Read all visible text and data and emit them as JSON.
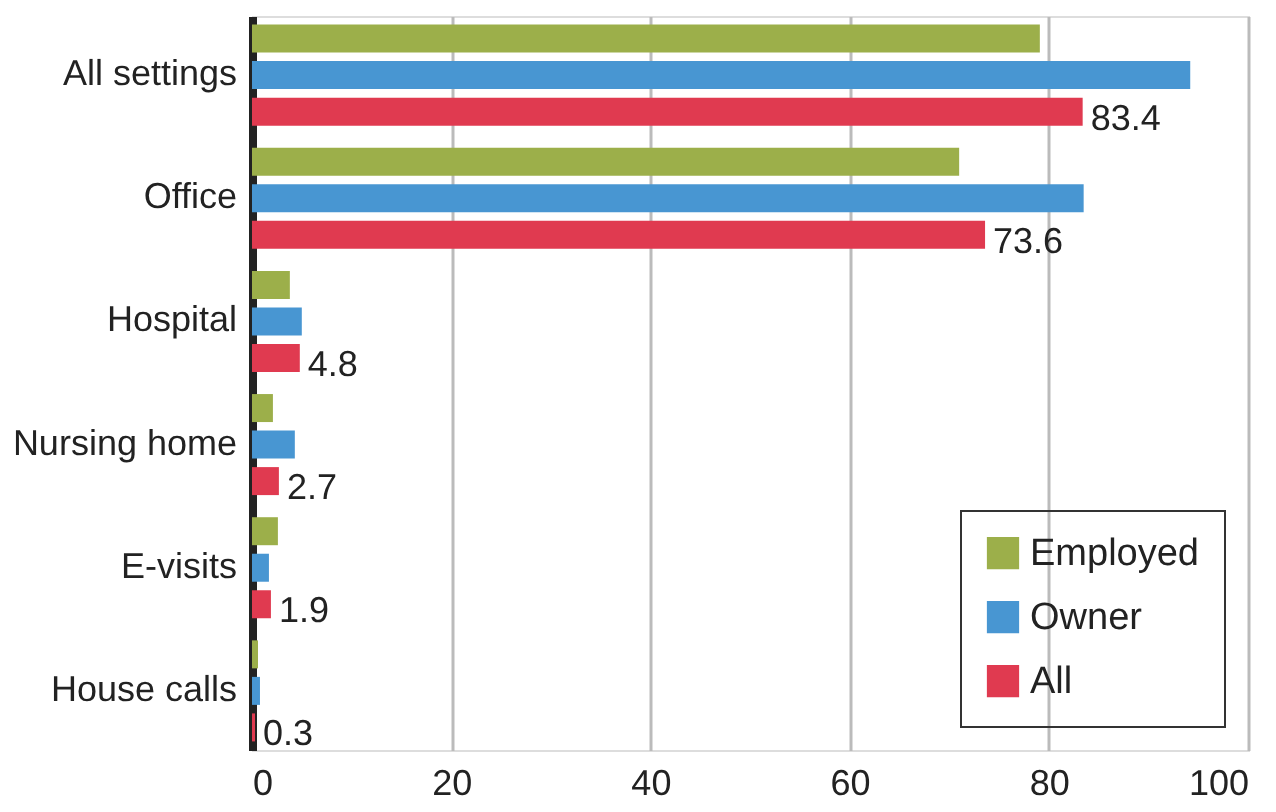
{
  "chart_data": {
    "type": "bar",
    "orientation": "horizontal",
    "categories": [
      "All settings",
      "Office",
      "Hospital",
      "Nursing home",
      "E-visits",
      "House calls"
    ],
    "series": [
      {
        "name": "Employed",
        "color": "#9caf4a",
        "values": [
          79.1,
          71.0,
          3.8,
          2.1,
          2.6,
          0.6
        ]
      },
      {
        "name": "Owner",
        "color": "#4896d2",
        "values": [
          94.2,
          83.5,
          5.0,
          4.3,
          1.7,
          0.8
        ]
      },
      {
        "name": "All",
        "color": "#e03a50",
        "values": [
          83.4,
          73.6,
          4.8,
          2.7,
          1.9,
          0.3
        ],
        "value_labels": [
          "83.4",
          "73.6",
          "4.8",
          "2.7",
          "1.9",
          "0.3"
        ]
      }
    ],
    "xlim": [
      0,
      100
    ],
    "xticks": [
      0,
      20,
      40,
      60,
      80,
      100
    ],
    "grid": "x",
    "legend": "bottom right"
  }
}
